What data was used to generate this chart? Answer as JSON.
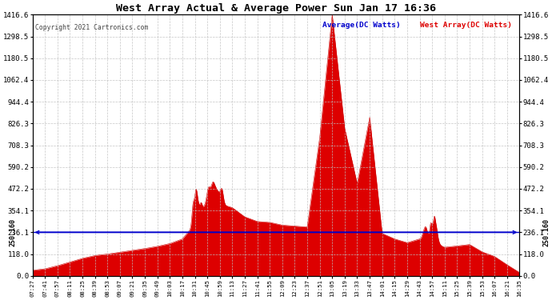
{
  "title": "West Array Actual & Average Power Sun Jan 17 16:36",
  "copyright": "Copyright 2021 Cartronics.com",
  "legend_avg": "Average(DC Watts)",
  "legend_west": "West Array(DC Watts)",
  "avg_value": 236.1,
  "left_ylabel": "250.160",
  "right_ylabel": "250.160",
  "yticks": [
    0.0,
    118.0,
    236.1,
    354.1,
    472.2,
    590.2,
    708.3,
    826.3,
    944.4,
    1062.4,
    1180.5,
    1298.5,
    1416.6
  ],
  "ymax": 1416.6,
  "ymin": 0.0,
  "background_color": "#ffffff",
  "fill_color": "#dd0000",
  "line_color": "#cc0000",
  "avg_line_color": "#0000cc",
  "grid_color": "#c0c0c0",
  "title_color": "#000000",
  "xtick_labels": [
    "07:27",
    "07:41",
    "07:57",
    "08:11",
    "08:25",
    "08:39",
    "08:53",
    "09:07",
    "09:21",
    "09:35",
    "09:49",
    "10:03",
    "10:17",
    "10:31",
    "10:45",
    "10:59",
    "11:13",
    "11:27",
    "11:41",
    "11:55",
    "12:09",
    "12:23",
    "12:37",
    "12:51",
    "13:05",
    "13:19",
    "13:33",
    "13:47",
    "14:01",
    "14:15",
    "14:29",
    "14:43",
    "14:57",
    "15:11",
    "15:25",
    "15:39",
    "15:53",
    "16:07",
    "16:21",
    "16:35"
  ],
  "west_values": [
    30,
    38,
    55,
    75,
    95,
    110,
    118,
    128,
    138,
    148,
    160,
    175,
    200,
    280,
    350,
    390,
    370,
    320,
    295,
    290,
    275,
    270,
    265,
    750,
    1416,
    800,
    500,
    860,
    230,
    200,
    180,
    200,
    185,
    155,
    162,
    170,
    130,
    105,
    60,
    18
  ],
  "figwidth": 6.9,
  "figheight": 3.75,
  "dpi": 100
}
